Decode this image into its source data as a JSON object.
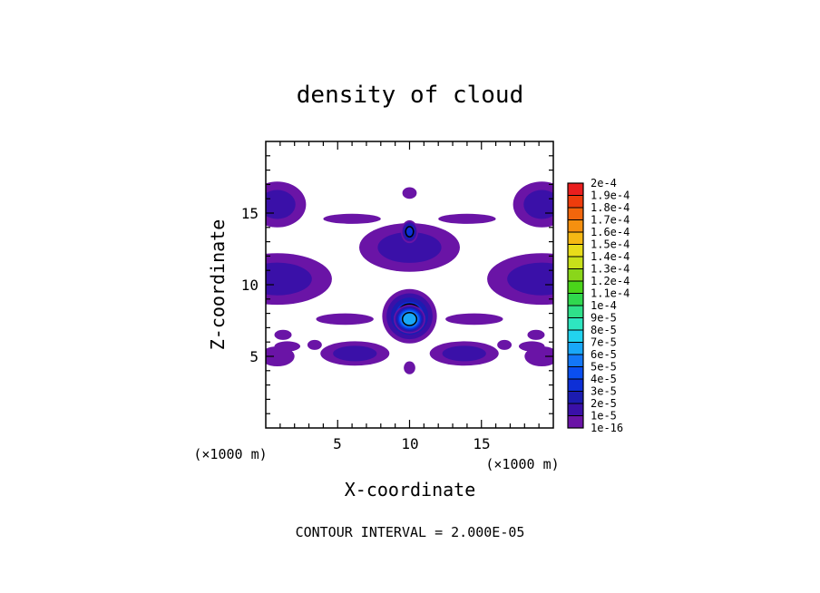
{
  "chart_data": {
    "type": "heatmap",
    "title": "density of cloud",
    "xlabel": "X-coordinate",
    "ylabel": "Z-coordinate",
    "x_units": "(×1000 m)",
    "y_units": "(×1000 m)",
    "xlim": [
      0,
      20
    ],
    "ylim": [
      0,
      20
    ],
    "xticks": [
      "5",
      "10",
      "15"
    ],
    "yticks": [
      "5",
      "10",
      "15"
    ],
    "footer": "CONTOUR INTERVAL = 2.000E-05",
    "colorbar": {
      "labels": [
        "1e-16",
        "1e-5",
        "2e-5",
        "3e-5",
        "4e-5",
        "5e-5",
        "6e-5",
        "7e-5",
        "8e-5",
        "9e-5",
        "1e-4",
        "1.1e-4",
        "1.2e-4",
        "1.3e-4",
        "1.4e-4",
        "1.5e-4",
        "1.6e-4",
        "1.7e-4",
        "1.8e-4",
        "1.9e-4",
        "2e-4"
      ],
      "colors": [
        "#6a14a6",
        "#3a10a8",
        "#1c1cb0",
        "#0d2fd6",
        "#0a4ff0",
        "#1377f7",
        "#19a7f8",
        "#22d3ef",
        "#2ee6c0",
        "#2fe08a",
        "#30d84e",
        "#4ad41a",
        "#8ad61a",
        "#c8e01a",
        "#e8dc1a",
        "#f5b814",
        "#f5900f",
        "#f2660c",
        "#ee3c0c",
        "#ea1e1e",
        "#f59a9a"
      ]
    },
    "blobs": [
      {
        "x": 0.8,
        "y": 15.6,
        "rx": 2.0,
        "ry": 1.6,
        "level": 1
      },
      {
        "x": 19.2,
        "y": 15.6,
        "rx": 2.0,
        "ry": 1.6,
        "level": 1
      },
      {
        "x": 10.0,
        "y": 16.4,
        "rx": 0.5,
        "ry": 0.4,
        "level": 0
      },
      {
        "x": 6.0,
        "y": 14.6,
        "rx": 2.0,
        "ry": 0.35,
        "level": 0
      },
      {
        "x": 14.0,
        "y": 14.6,
        "rx": 2.0,
        "ry": 0.35,
        "level": 0
      },
      {
        "x": 10.0,
        "y": 12.6,
        "rx": 3.5,
        "ry": 1.7,
        "level": 1
      },
      {
        "x": 10.0,
        "y": 13.7,
        "rx": 0.6,
        "ry": 0.8,
        "level": 3
      },
      {
        "x": 0.8,
        "y": 10.4,
        "rx": 3.8,
        "ry": 1.8,
        "level": 1
      },
      {
        "x": 19.2,
        "y": 10.4,
        "rx": 3.8,
        "ry": 1.8,
        "level": 1
      },
      {
        "x": 10.0,
        "y": 7.8,
        "rx": 1.9,
        "ry": 1.9,
        "level": 3
      },
      {
        "x": 10.0,
        "y": 7.6,
        "rx": 1.1,
        "ry": 1.0,
        "level": 6
      },
      {
        "x": 5.5,
        "y": 7.6,
        "rx": 2.0,
        "ry": 0.4,
        "level": 0
      },
      {
        "x": 14.5,
        "y": 7.6,
        "rx": 2.0,
        "ry": 0.4,
        "level": 0
      },
      {
        "x": 1.2,
        "y": 6.5,
        "rx": 0.6,
        "ry": 0.35,
        "level": 0
      },
      {
        "x": 18.8,
        "y": 6.5,
        "rx": 0.6,
        "ry": 0.35,
        "level": 0
      },
      {
        "x": 1.5,
        "y": 5.7,
        "rx": 0.9,
        "ry": 0.35,
        "level": 0
      },
      {
        "x": 18.5,
        "y": 5.7,
        "rx": 0.9,
        "ry": 0.35,
        "level": 0
      },
      {
        "x": 3.4,
        "y": 5.8,
        "rx": 0.5,
        "ry": 0.35,
        "level": 0
      },
      {
        "x": 16.6,
        "y": 5.8,
        "rx": 0.5,
        "ry": 0.35,
        "level": 0
      },
      {
        "x": 6.2,
        "y": 5.2,
        "rx": 2.4,
        "ry": 0.85,
        "level": 1
      },
      {
        "x": 13.8,
        "y": 5.2,
        "rx": 2.4,
        "ry": 0.85,
        "level": 1
      },
      {
        "x": 0.8,
        "y": 5.0,
        "rx": 1.2,
        "ry": 0.7,
        "level": 0
      },
      {
        "x": 19.2,
        "y": 5.0,
        "rx": 1.2,
        "ry": 0.7,
        "level": 0
      },
      {
        "x": 10.0,
        "y": 4.2,
        "rx": 0.4,
        "ry": 0.45,
        "level": 0
      }
    ]
  }
}
